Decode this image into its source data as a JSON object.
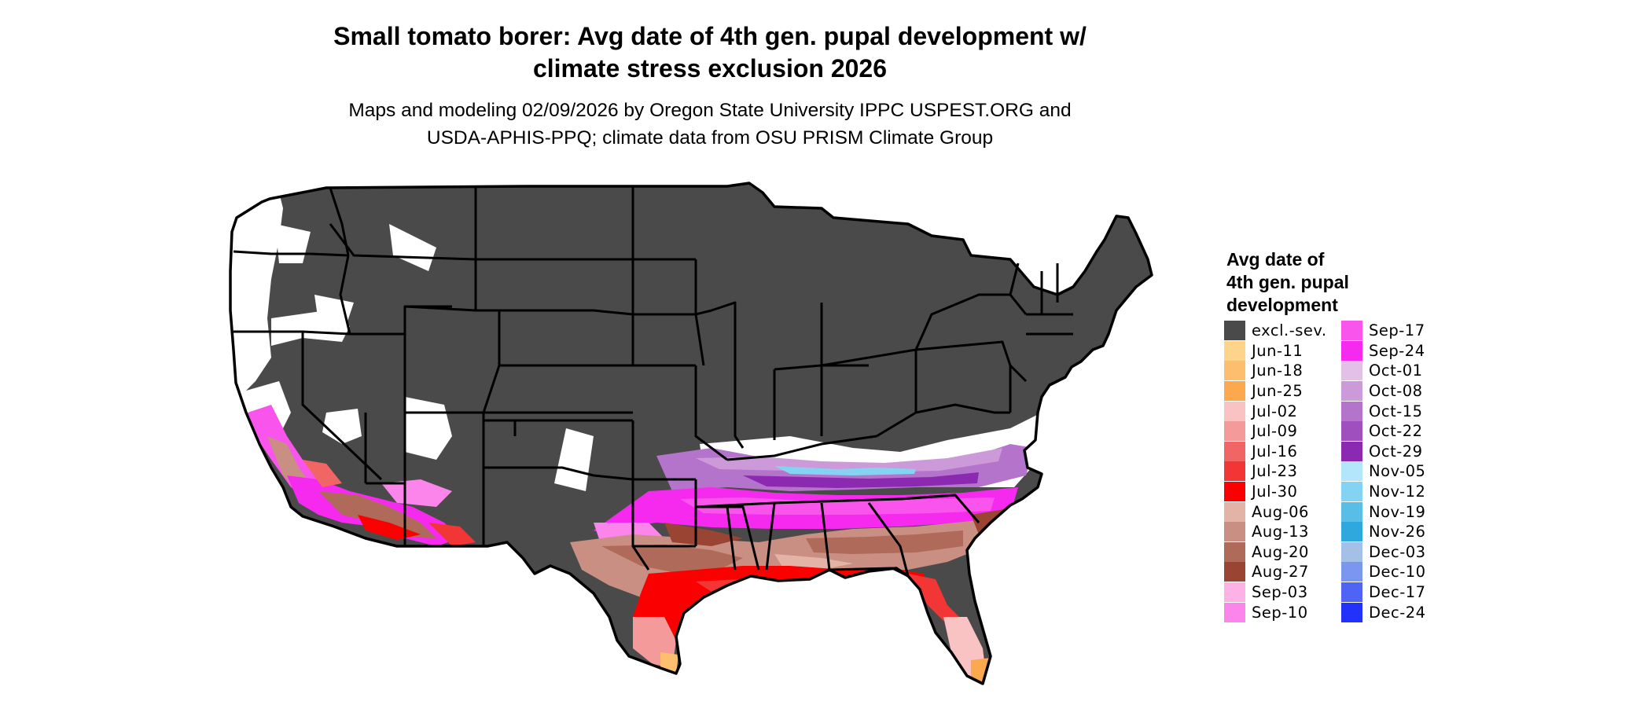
{
  "title_line1": "Small tomato borer: Avg date of 4th gen. pupal development w/",
  "title_line2": "climate stress exclusion 2026",
  "subtitle_line1": "Maps and modeling 02/09/2026 by Oregon State University IPPC USPEST.ORG and",
  "subtitle_line2": "USDA-APHIS-PPQ; climate data from OSU PRISM Climate Group",
  "legend": {
    "title_lines": [
      "Avg date of",
      "4th gen. pupal",
      "development"
    ],
    "col1": [
      {
        "label": "excl.-sev.",
        "color": "#4a4a4a"
      },
      {
        "label": "Jun-11",
        "color": "#fdd48a"
      },
      {
        "label": "Jun-18",
        "color": "#fdbe6e"
      },
      {
        "label": "Jun-25",
        "color": "#fba84e"
      },
      {
        "label": "Jul-02",
        "color": "#f9c3c3"
      },
      {
        "label": "Jul-09",
        "color": "#f59a9a"
      },
      {
        "label": "Jul-16",
        "color": "#f16565"
      },
      {
        "label": "Jul-23",
        "color": "#f23636"
      },
      {
        "label": "Jul-30",
        "color": "#fb0000"
      },
      {
        "label": "Aug-06",
        "color": "#e4b3a8"
      },
      {
        "label": "Aug-13",
        "color": "#c98f82"
      },
      {
        "label": "Aug-20",
        "color": "#b06a5a"
      },
      {
        "label": "Aug-27",
        "color": "#9a4433"
      },
      {
        "label": "Sep-03",
        "color": "#fdb2e6"
      },
      {
        "label": "Sep-10",
        "color": "#fb85ea"
      }
    ],
    "col2": [
      {
        "label": "Sep-17",
        "color": "#f955ec"
      },
      {
        "label": "Sep-24",
        "color": "#f62aef"
      },
      {
        "label": "Oct-01",
        "color": "#e3c1e6"
      },
      {
        "label": "Oct-08",
        "color": "#cc9ad9"
      },
      {
        "label": "Oct-15",
        "color": "#b574cc"
      },
      {
        "label": "Oct-22",
        "color": "#a04fbe"
      },
      {
        "label": "Oct-29",
        "color": "#8b2ab0"
      },
      {
        "label": "Nov-05",
        "color": "#b3e6fb"
      },
      {
        "label": "Nov-12",
        "color": "#85d3f2"
      },
      {
        "label": "Nov-19",
        "color": "#58bee8"
      },
      {
        "label": "Nov-26",
        "color": "#2fa8dd"
      },
      {
        "label": "Dec-03",
        "color": "#a4c0e6"
      },
      {
        "label": "Dec-10",
        "color": "#7b96ee"
      },
      {
        "label": "Dec-17",
        "color": "#4f63f4"
      },
      {
        "label": "Dec-24",
        "color": "#2232fb"
      }
    ]
  }
}
